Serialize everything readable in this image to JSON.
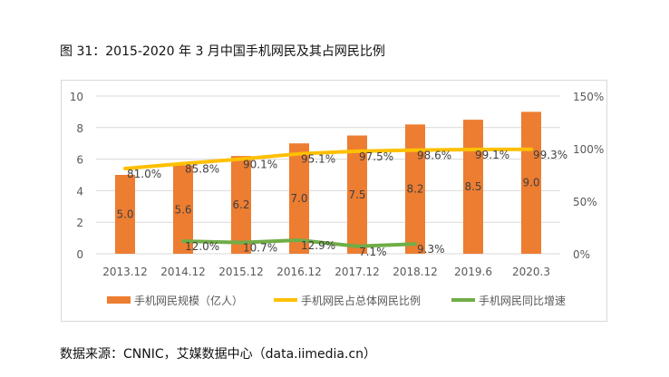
{
  "title": "图 31：2015-2020 年 3 月中国手机网民及其占网民比例",
  "source": "数据来源：CNNIC，艾媒数据中心（data.iimedia.cn）",
  "colors": {
    "bar": "#ED7D31",
    "share": "#FFC000",
    "growth": "#70AD47",
    "grid": "#d9d9d9",
    "text": "#595959"
  },
  "chart_data": {
    "type": "bar+line",
    "categories": [
      "2013.12",
      "2014.12",
      "2015.12",
      "2016.12",
      "2017.12",
      "2018.12",
      "2019.6",
      "2020.3"
    ],
    "y_left": {
      "range": [
        0,
        10
      ],
      "ticks": [
        "0",
        "2",
        "4",
        "6",
        "8",
        "10"
      ]
    },
    "y_right": {
      "range": [
        0,
        150
      ],
      "ticks": [
        "0%",
        "50%",
        "100%",
        "150%"
      ]
    },
    "grid": true,
    "legend_position": "bottom",
    "series": [
      {
        "name": "手机网民规模（亿人）",
        "type": "bar",
        "axis": "left",
        "values": [
          5.0,
          5.6,
          6.2,
          7.0,
          7.5,
          8.2,
          8.5,
          9.0
        ],
        "labels": [
          "5.0",
          "5.6",
          "6.2",
          "7.0",
          "7.5",
          "8.2",
          "8.5",
          "9.0"
        ]
      },
      {
        "name": "手机网民占总体网民比例",
        "type": "line",
        "axis": "right",
        "values": [
          81.0,
          85.8,
          90.1,
          95.1,
          97.5,
          98.6,
          99.1,
          99.3
        ],
        "labels": [
          "81.0%",
          "85.8%",
          "90.1%",
          "95.1%",
          "97.5%",
          "98.6%",
          "99.1%",
          "99.3%"
        ]
      },
      {
        "name": "手机网民同比增速",
        "type": "line",
        "axis": "right",
        "values": [
          null,
          12.0,
          10.7,
          12.9,
          7.1,
          9.3,
          null,
          null
        ],
        "labels": [
          "",
          "12.0%",
          "10.7%",
          "12.9%",
          "7.1%",
          "9.3%",
          "",
          ""
        ]
      }
    ]
  }
}
